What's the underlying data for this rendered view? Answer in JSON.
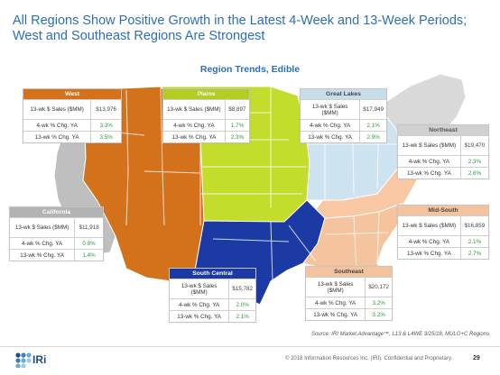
{
  "headline": {
    "line1": "All Regions Show Positive Growth in the Latest 4-Week and 13-Week Periods;",
    "line2": "West and Southeast Regions Are Strongest"
  },
  "map_title": "Region Trends, Edible",
  "colors": {
    "west": "#d4721c",
    "plains": "#c4dc2c",
    "great_lakes": "#cde3ef",
    "northeast": "#d9d9d9",
    "mid_south": "#f7c8a3",
    "south_central": "#1b3aa3",
    "southeast": "#f5c39d",
    "california": "#bfbfbf",
    "positive": "#2e9b3b",
    "title_blue": "#2c6fb6"
  },
  "regions": {
    "west": {
      "name": "West",
      "rows": [
        {
          "label": "13-wk $ Sales ($MM)",
          "value": "$13,976"
        },
        {
          "label": "4-wk % Chg. YA",
          "value": "3.3%"
        },
        {
          "label": "13-wk % Chg. YA",
          "value": "3.5%"
        }
      ]
    },
    "plains": {
      "name": "Plains",
      "rows": [
        {
          "label": "13-wk $ Sales ($MM)",
          "value": "$8,897"
        },
        {
          "label": "4-wk % Chg. YA",
          "value": "1.7%"
        },
        {
          "label": "13-wk % Chg. YA",
          "value": "2.3%"
        }
      ]
    },
    "great_lakes": {
      "name": "Great Lakes",
      "rows": [
        {
          "label": "13-wk $ Sales ($MM)",
          "value": "$17,949"
        },
        {
          "label": "4-wk % Chg. YA",
          "value": "2.1%"
        },
        {
          "label": "13-wk % Chg. YA",
          "value": "2.9%"
        }
      ]
    },
    "northeast": {
      "name": "Northeast",
      "rows": [
        {
          "label": "13-wk $ Sales ($MM)",
          "value": "$19,470"
        },
        {
          "label": "4-wk % Chg. YA",
          "value": "2.3%"
        },
        {
          "label": "13-wk % Chg. YA",
          "value": "2.6%"
        }
      ]
    },
    "california": {
      "name": "California",
      "rows": [
        {
          "label": "13-wk $ Sales ($MM)",
          "value": "$11,918"
        },
        {
          "label": "4-wk % Chg. YA",
          "value": "0.8%"
        },
        {
          "label": "13-wk % Chg. YA",
          "value": "1.4%"
        }
      ]
    },
    "mid_south": {
      "name": "Mid-South",
      "rows": [
        {
          "label": "13-wk $ Sales ($MM)",
          "value": "$16,859"
        },
        {
          "label": "4-wk % Chg. YA",
          "value": "2.1%"
        },
        {
          "label": "13-wk % Chg. YA",
          "value": "2.7%"
        }
      ]
    },
    "south_central": {
      "name": "South Central",
      "rows": [
        {
          "label": "13-wk $ Sales ($MM)",
          "value": "$15,782"
        },
        {
          "label": "4-wk % Chg. YA",
          "value": "2.0%"
        },
        {
          "label": "13-wk % Chg. YA",
          "value": "2.1%"
        }
      ]
    },
    "southeast": {
      "name": "Southeast",
      "rows": [
        {
          "label": "13-wk $ Sales ($MM)",
          "value": "$20,172"
        },
        {
          "label": "4-wk % Chg. YA",
          "value": "3.2%"
        },
        {
          "label": "13-wk % Chg. YA",
          "value": "3.2%"
        }
      ]
    }
  },
  "source": "Source: IRI Market Advantage™, L13 & L4WE 3/25/18, MULO+C Regions",
  "footer": {
    "logo_text": "IRi",
    "copyright": "© 2018 Information Resources Inc. (IRI). Confidential and Proprietary.",
    "page_number": "29"
  }
}
